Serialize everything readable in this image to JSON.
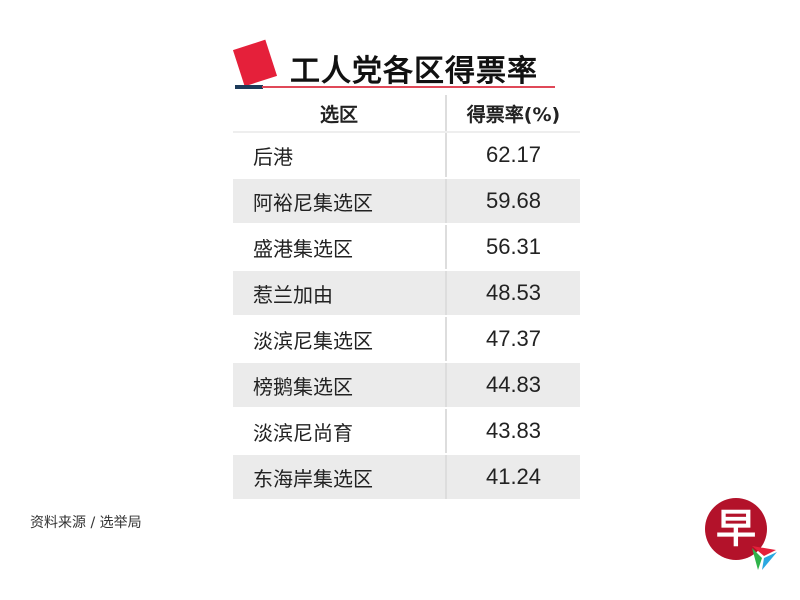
{
  "title": "工人党各区得票率",
  "chart_data": {
    "type": "table",
    "title": "工人党各区得票率",
    "columns": [
      "选区",
      "得票率(%)"
    ],
    "rows": [
      [
        "后港",
        "62.17"
      ],
      [
        "阿裕尼集选区",
        "59.68"
      ],
      [
        "盛港集选区",
        "56.31"
      ],
      [
        "惹兰加由",
        "48.53"
      ],
      [
        "淡滨尼集选区",
        "47.37"
      ],
      [
        "榜鹅集选区",
        "44.83"
      ],
      [
        "淡滨尼尚育",
        "43.83"
      ],
      [
        "东海岸集选区",
        "41.24"
      ]
    ]
  },
  "source": "资料来源 / 选举局",
  "logo": {
    "text": "早"
  },
  "colors": {
    "accent": "#e5203a",
    "rule_dark": "#1d3b5a",
    "row_alt": "#ebebeb",
    "logo": "#b3122a"
  }
}
